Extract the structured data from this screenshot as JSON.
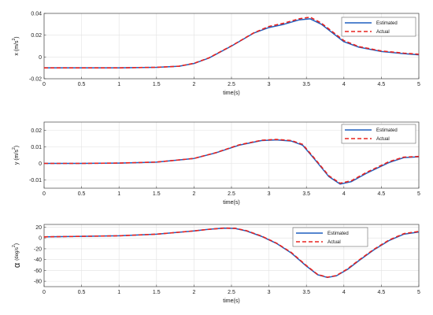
{
  "chart_data": [
    {
      "type": "line",
      "xlabel": "time(s)",
      "ylabel": "x (m/s",
      "ylabel_sup": "2",
      "ylabel_close": ")",
      "xlim": [
        0,
        5
      ],
      "ylim": [
        -0.02,
        0.04
      ],
      "xticks": [
        0,
        0.5,
        1,
        1.5,
        2,
        2.5,
        3,
        3.5,
        4,
        4.5,
        5
      ],
      "xtick_labels": [
        "0",
        "0.5",
        "1",
        "1.5",
        "2",
        "2.5",
        "3",
        "3.5",
        "4",
        "4.5",
        "5"
      ],
      "yticks": [
        -0.02,
        0,
        0.02,
        0.04
      ],
      "ytick_labels": [
        "-0.02",
        "0",
        "0.02",
        "0.04"
      ],
      "grid": true,
      "legend_position": "top-right",
      "series": [
        {
          "name": "Estimated",
          "color": "#1f5fbf",
          "style": "solid",
          "x": [
            0,
            0.5,
            1,
            1.5,
            1.8,
            2,
            2.2,
            2.5,
            2.8,
            3,
            3.2,
            3.4,
            3.55,
            3.7,
            3.85,
            4,
            4.2,
            4.5,
            4.8,
            5
          ],
          "y": [
            -0.01,
            -0.01,
            -0.01,
            -0.0095,
            -0.0085,
            -0.006,
            -0.001,
            0.01,
            0.022,
            0.027,
            0.03,
            0.034,
            0.035,
            0.03,
            0.022,
            0.014,
            0.009,
            0.005,
            0.003,
            0.002
          ]
        },
        {
          "name": "Actual",
          "color": "#e8231f",
          "style": "dashed",
          "x": [
            0,
            0.5,
            1,
            1.5,
            1.8,
            2,
            2.2,
            2.5,
            2.8,
            3,
            3.2,
            3.4,
            3.55,
            3.7,
            3.85,
            4,
            4.2,
            4.5,
            4.8,
            5
          ],
          "y": [
            -0.01,
            -0.01,
            -0.01,
            -0.0095,
            -0.0085,
            -0.0058,
            -0.0008,
            0.0102,
            0.0222,
            0.028,
            0.031,
            0.035,
            0.0365,
            0.031,
            0.023,
            0.015,
            0.0095,
            0.0055,
            0.0035,
            0.0025
          ]
        }
      ]
    },
    {
      "type": "line",
      "xlabel": "time(s)",
      "ylabel": "y (m/s",
      "ylabel_sup": "2",
      "ylabel_close": ")",
      "xlim": [
        0,
        5
      ],
      "ylim": [
        -0.015,
        0.025
      ],
      "xticks": [
        0,
        0.5,
        1,
        1.5,
        2,
        2.5,
        3,
        3.5,
        4,
        4.5,
        5
      ],
      "xtick_labels": [
        "0",
        "0.5",
        "1",
        "1.5",
        "2",
        "2.5",
        "3",
        "3.5",
        "4",
        "4.5",
        "5"
      ],
      "yticks": [
        -0.01,
        0,
        0.01,
        0.02
      ],
      "ytick_labels": [
        "-0.01",
        "0",
        "0.01",
        "0.02"
      ],
      "grid": true,
      "legend_position": "top-right",
      "series": [
        {
          "name": "Estimated",
          "color": "#1f5fbf",
          "style": "solid",
          "x": [
            0,
            0.5,
            1,
            1.5,
            2,
            2.3,
            2.6,
            2.9,
            3.1,
            3.3,
            3.45,
            3.6,
            3.8,
            3.95,
            4.1,
            4.3,
            4.6,
            4.8,
            5
          ],
          "y": [
            0,
            0,
            0.0002,
            0.0008,
            0.003,
            0.0065,
            0.011,
            0.0138,
            0.0142,
            0.0135,
            0.011,
            0.003,
            -0.008,
            -0.0125,
            -0.011,
            -0.006,
            0.0005,
            0.0035,
            0.004
          ]
        },
        {
          "name": "Actual",
          "color": "#e8231f",
          "style": "dashed",
          "x": [
            0,
            0.5,
            1,
            1.5,
            2,
            2.3,
            2.6,
            2.9,
            3.1,
            3.3,
            3.45,
            3.6,
            3.8,
            3.95,
            4.1,
            4.3,
            4.6,
            4.8,
            5
          ],
          "y": [
            0,
            0,
            0.0002,
            0.0008,
            0.003,
            0.0066,
            0.0112,
            0.014,
            0.0145,
            0.0138,
            0.0115,
            0.0035,
            -0.0075,
            -0.012,
            -0.0105,
            -0.0055,
            0.001,
            0.0038,
            0.0042
          ]
        }
      ]
    },
    {
      "type": "line",
      "xlabel": "time(s)",
      "ylabel": "α",
      "ylabel_unit": "(deg/s",
      "ylabel_sup": "2",
      "ylabel_close": ")",
      "xlim": [
        0,
        5
      ],
      "ylim": [
        -90,
        25
      ],
      "xticks": [
        0,
        0.5,
        1,
        1.5,
        2,
        2.5,
        3,
        3.5,
        4,
        4.5,
        5
      ],
      "xtick_labels": [
        "0",
        "0.5",
        "1",
        "1.5",
        "2",
        "2.5",
        "3",
        "3.5",
        "4",
        "4.5",
        "5"
      ],
      "yticks": [
        -80,
        -60,
        -40,
        -20,
        0,
        20
      ],
      "ytick_labels": [
        "-80",
        "-60",
        "-40",
        "-20",
        "0",
        "20"
      ],
      "grid": true,
      "legend_position": "top-center-right",
      "series": [
        {
          "name": "Estimated",
          "color": "#1f5fbf",
          "style": "solid",
          "x": [
            0,
            0.5,
            1,
            1.5,
            2,
            2.2,
            2.4,
            2.55,
            2.7,
            2.9,
            3.1,
            3.3,
            3.5,
            3.65,
            3.78,
            3.9,
            4.05,
            4.2,
            4.4,
            4.6,
            4.8,
            5
          ],
          "y": [
            2,
            3,
            4,
            7,
            13,
            16,
            18,
            17.5,
            13,
            3,
            -10,
            -28,
            -52,
            -68,
            -73,
            -70,
            -58,
            -42,
            -22,
            -5,
            7,
            11
          ]
        },
        {
          "name": "Actual",
          "color": "#e8231f",
          "style": "dashed",
          "x": [
            0,
            0.5,
            1,
            1.5,
            2,
            2.2,
            2.4,
            2.55,
            2.7,
            2.9,
            3.1,
            3.3,
            3.5,
            3.65,
            3.78,
            3.9,
            4.05,
            4.2,
            4.4,
            4.6,
            4.8,
            5
          ],
          "y": [
            2,
            3,
            4,
            7,
            13,
            16,
            18.2,
            17.8,
            13.5,
            3.5,
            -9.5,
            -27,
            -51,
            -67.5,
            -72.5,
            -69.5,
            -57,
            -41,
            -21,
            -4,
            8,
            12
          ]
        }
      ]
    }
  ]
}
